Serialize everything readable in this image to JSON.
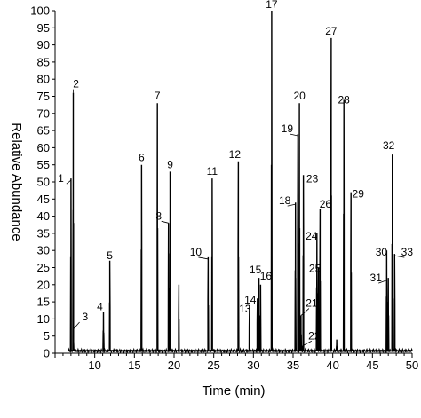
{
  "chart_data": {
    "type": "line",
    "title": "",
    "xlabel": "Time (min)",
    "ylabel": "Relative Abundance",
    "xlim": [
      5,
      50
    ],
    "ylim": [
      0,
      100
    ],
    "x_ticks": [
      10,
      15,
      20,
      25,
      30,
      35,
      40,
      45,
      50
    ],
    "y_ticks": [
      0,
      5,
      10,
      15,
      20,
      25,
      30,
      35,
      40,
      45,
      50,
      55,
      60,
      65,
      70,
      75,
      80,
      85,
      90,
      95,
      100
    ],
    "grid": false,
    "baseline": 0.7,
    "peaks": [
      {
        "label": "1",
        "x": 7.0,
        "y": 51
      },
      {
        "label": "2",
        "x": 7.3,
        "y": 76
      },
      {
        "label": "3",
        "x": 7.3,
        "y": 7
      },
      {
        "label": "4",
        "x": 11.1,
        "y": 12
      },
      {
        "label": "5",
        "x": 11.9,
        "y": 27
      },
      {
        "label": "6",
        "x": 15.9,
        "y": 55
      },
      {
        "label": "7",
        "x": 17.9,
        "y": 73
      },
      {
        "label": "8",
        "x": 19.3,
        "y": 38
      },
      {
        "label": "9",
        "x": 19.5,
        "y": 53
      },
      {
        "label": "",
        "x": 20.6,
        "y": 20
      },
      {
        "label": "10",
        "x": 24.3,
        "y": 28
      },
      {
        "label": "11",
        "x": 24.8,
        "y": 51
      },
      {
        "label": "12",
        "x": 28.1,
        "y": 56
      },
      {
        "label": "13",
        "x": 29.5,
        "y": 14
      },
      {
        "label": "14",
        "x": 30.5,
        "y": 16
      },
      {
        "label": "15",
        "x": 30.7,
        "y": 22
      },
      {
        "label": "16",
        "x": 30.9,
        "y": 20
      },
      {
        "label": "17",
        "x": 32.3,
        "y": 100
      },
      {
        "label": "18",
        "x": 35.3,
        "y": 44
      },
      {
        "label": "19",
        "x": 35.6,
        "y": 64
      },
      {
        "label": "20",
        "x": 35.8,
        "y": 73
      },
      {
        "label": "21",
        "x": 36.0,
        "y": 11
      },
      {
        "label": "22",
        "x": 36.1,
        "y": 2
      },
      {
        "label": "23",
        "x": 36.3,
        "y": 52
      },
      {
        "label": "24",
        "x": 38.0,
        "y": 35
      },
      {
        "label": "25",
        "x": 38.2,
        "y": 25
      },
      {
        "label": "26",
        "x": 38.4,
        "y": 42
      },
      {
        "label": "27",
        "x": 39.8,
        "y": 92
      },
      {
        "label": "",
        "x": 40.5,
        "y": 4
      },
      {
        "label": "28",
        "x": 41.4,
        "y": 74
      },
      {
        "label": "29",
        "x": 42.3,
        "y": 47
      },
      {
        "label": "30",
        "x": 46.8,
        "y": 30
      },
      {
        "label": "31",
        "x": 47.0,
        "y": 22
      },
      {
        "label": "32",
        "x": 47.5,
        "y": 58
      },
      {
        "label": "33",
        "x": 47.8,
        "y": 29
      }
    ]
  }
}
